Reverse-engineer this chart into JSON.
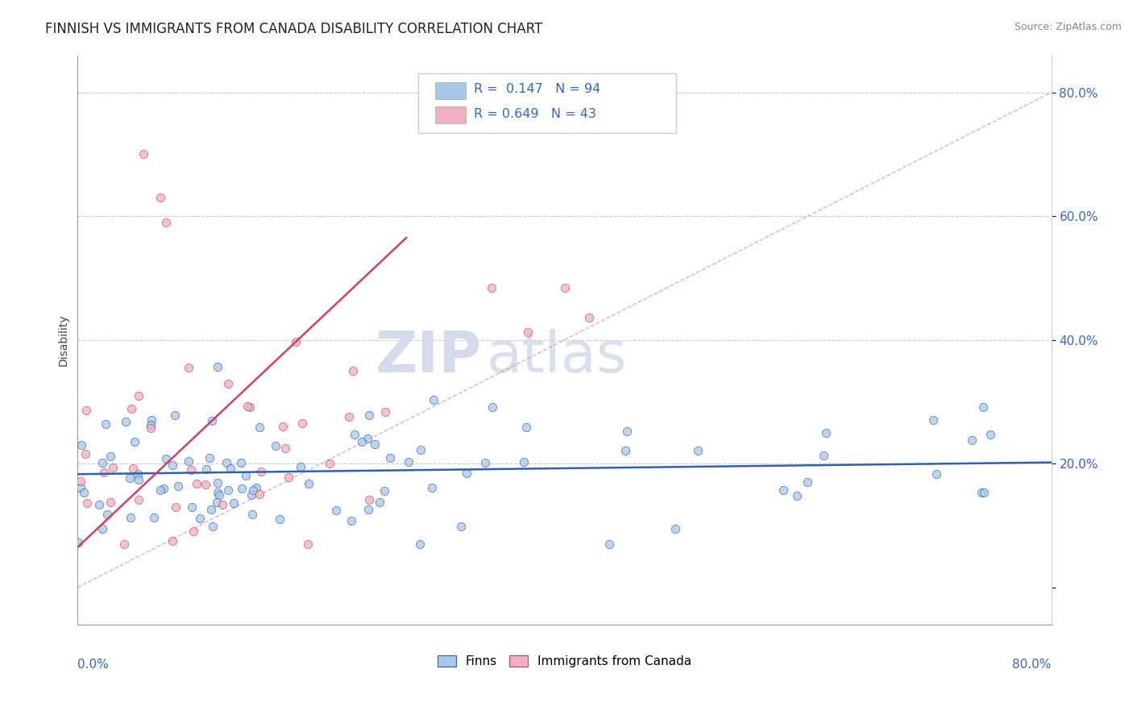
{
  "title": "FINNISH VS IMMIGRANTS FROM CANADA DISABILITY CORRELATION CHART",
  "source": "Source: ZipAtlas.com",
  "ylabel": "Disability",
  "xlim": [
    0.0,
    0.8
  ],
  "ylim": [
    -0.06,
    0.86
  ],
  "r_finns": 0.147,
  "n_finns": 94,
  "r_canada": 0.649,
  "n_canada": 43,
  "color_finns": "#a8c8e8",
  "color_canada": "#f0b0c0",
  "color_finns_line": "#3060b0",
  "color_canada_line": "#d04060",
  "color_diagonal": "#d0a0b0",
  "watermark_zip": "ZIP",
  "watermark_atlas": "atlas",
  "legend_text1": "R =  0.147   N = 94",
  "legend_text2": "R = 0.649   N = 43"
}
